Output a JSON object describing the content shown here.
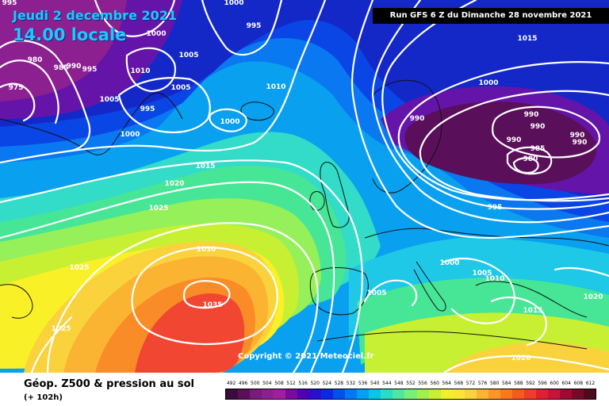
{
  "header": {
    "date": "Jeudi 2 decembre 2021",
    "time": "14.00 locale",
    "run": "Run GFS 6 Z du Dimanche 28 novembre 2021"
  },
  "copyright": "Copyright © 2021 Meteociel.fr",
  "footer": {
    "title": "Géop. Z500 & pression au sol",
    "subtitle": "(+ 102h)"
  },
  "legend": {
    "labels": [
      "492",
      "496",
      "500",
      "504",
      "508",
      "512",
      "516",
      "520",
      "524",
      "528",
      "532",
      "536",
      "540",
      "544",
      "548",
      "552",
      "556",
      "560",
      "564",
      "568",
      "572",
      "576",
      "580",
      "584",
      "588",
      "592",
      "596",
      "600",
      "604",
      "608",
      "612"
    ],
    "colors": [
      "#3c0a3c",
      "#5a0f5a",
      "#7a1a7a",
      "#8c2090",
      "#a01ea0",
      "#780aa0",
      "#5000b4",
      "#2810d2",
      "#0a28e6",
      "#0050f0",
      "#0078f5",
      "#00a0f5",
      "#00c8e6",
      "#28dcc8",
      "#50e6a0",
      "#78f078",
      "#a0f050",
      "#c8f032",
      "#f0f028",
      "#fae632",
      "#fad23c",
      "#fab432",
      "#fa9628",
      "#fa781e",
      "#f55a1e",
      "#f03c28",
      "#e11e32",
      "#c8143c",
      "#a00a32",
      "#780a28",
      "#500a1e"
    ]
  },
  "map": {
    "colors": {
      "deep_purple": "#5a0f5a",
      "purple": "#8c2090",
      "violet": "#6414a8",
      "navy": "#1428c8",
      "blue": "#0a46e6",
      "mid_blue": "#0a78f0",
      "light_blue": "#0aa0f0",
      "cyan": "#1ec8e6",
      "teal": "#32dcc8",
      "green": "#46e696",
      "light_green": "#96f05a",
      "yellow_green": "#c8f032",
      "yellow": "#faf028",
      "gold": "#fad23c",
      "orange": "#fab432",
      "dark_orange": "#fa8c28",
      "red": "#f04632",
      "coast": "#111111",
      "isobar": "#ffffff"
    },
    "isobar_labels": [
      {
        "text": "995",
        "ref": "anchor-nw"
      },
      {
        "text": "1000",
        "ref": "anchor-n1"
      },
      {
        "text": "995",
        "ref": "anchor-n2"
      },
      {
        "text": "980",
        "ref": "anchor-w1"
      },
      {
        "text": "985",
        "ref": "anchor-w2"
      },
      {
        "text": "990",
        "ref": "anchor-w3"
      },
      {
        "text": "995",
        "ref": "anchor-w4"
      },
      {
        "text": "975",
        "ref": "anchor-w5"
      },
      {
        "text": "1005",
        "ref": "anchor-w6"
      },
      {
        "text": "1010",
        "ref": "anchor-w7"
      },
      {
        "text": "1005",
        "ref": "anchor-w8"
      },
      {
        "text": "1005",
        "ref": "anchor-w9"
      },
      {
        "text": "995",
        "ref": "anchor-w10"
      },
      {
        "text": "1000",
        "ref": "anchor-w11"
      },
      {
        "text": "1000",
        "ref": "anchor-w12"
      },
      {
        "text": "1000",
        "ref": "anchor-w13"
      },
      {
        "text": "1010",
        "ref": "anchor-c1"
      },
      {
        "text": "1015",
        "ref": "anchor-c2"
      },
      {
        "text": "1020",
        "ref": "anchor-c3"
      },
      {
        "text": "1025",
        "ref": "anchor-c4"
      },
      {
        "text": "1025",
        "ref": "anchor-c5"
      },
      {
        "text": "1030",
        "ref": "anchor-c6"
      },
      {
        "text": "1035",
        "ref": "anchor-c7"
      },
      {
        "text": "1025",
        "ref": "anchor-c8"
      },
      {
        "text": "1015",
        "ref": "anchor-e1"
      },
      {
        "text": "1000",
        "ref": "anchor-e2"
      },
      {
        "text": "990",
        "ref": "anchor-e3"
      },
      {
        "text": "990",
        "ref": "anchor-e4"
      },
      {
        "text": "990",
        "ref": "anchor-e5"
      },
      {
        "text": "990",
        "ref": "anchor-e6"
      },
      {
        "text": "985",
        "ref": "anchor-e7"
      },
      {
        "text": "980",
        "ref": "anchor-e8"
      },
      {
        "text": "990",
        "ref": "anchor-e9"
      },
      {
        "text": "990",
        "ref": "anchor-e10"
      },
      {
        "text": "995",
        "ref": "anchor-e11"
      },
      {
        "text": "1000",
        "ref": "anchor-s1"
      },
      {
        "text": "1005",
        "ref": "anchor-s2"
      },
      {
        "text": "1010",
        "ref": "anchor-s3"
      },
      {
        "text": "1005",
        "ref": "anchor-s4"
      },
      {
        "text": "1015",
        "ref": "anchor-s5"
      },
      {
        "text": "1020",
        "ref": "anchor-s6"
      },
      {
        "text": "1020",
        "ref": "anchor-s7"
      }
    ]
  }
}
